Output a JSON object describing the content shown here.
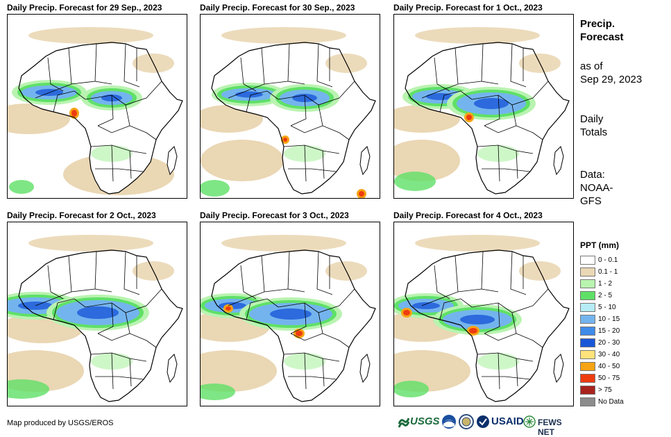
{
  "panels": [
    {
      "title": "Daily Precip. Forecast for 29  Sep., 2023"
    },
    {
      "title": "Daily Precip. Forecast for 30  Sep., 2023"
    },
    {
      "title": "Daily Precip. Forecast for 1 Oct., 2023"
    },
    {
      "title": "Daily Precip. Forecast for 2 Oct., 2023"
    },
    {
      "title": "Daily Precip. Forecast for 3 Oct., 2023"
    },
    {
      "title": "Daily Precip. Forecast for 4 Oct., 2023"
    }
  ],
  "side": {
    "title_line1": "Precip.",
    "title_line2": "Forecast",
    "asof_line1": "as of",
    "asof_line2": "Sep 29, 2023",
    "daily_line1": "Daily",
    "daily_line2": "Totals",
    "data_line1": "Data:",
    "data_line2": "NOAA-",
    "data_line3": "GFS"
  },
  "legend": {
    "title": "PPT (mm)",
    "items": [
      {
        "label": "0 - 0.1",
        "color": "#ffffff"
      },
      {
        "label": "0.1 - 1",
        "color": "#ead7b4"
      },
      {
        "label": "1 - 2",
        "color": "#b9f3b0"
      },
      {
        "label": "2 - 5",
        "color": "#5fe067"
      },
      {
        "label": "5 - 10",
        "color": "#b6ecf5"
      },
      {
        "label": "10 - 15",
        "color": "#74b4ee"
      },
      {
        "label": "15 - 20",
        "color": "#3f8be8"
      },
      {
        "label": "20 - 30",
        "color": "#1a57d8"
      },
      {
        "label": "30 - 40",
        "color": "#fde37a"
      },
      {
        "label": "40 - 50",
        "color": "#f7a414"
      },
      {
        "label": "50 - 75",
        "color": "#ee3c10"
      },
      {
        "label": "> 75",
        "color": "#a8231e"
      },
      {
        "label": "No Data",
        "color": "#8c8c8c"
      }
    ]
  },
  "footer": {
    "credit": "Map produced by USGS/EROS",
    "logo_usgs": "USGS",
    "logo_usaid": "USAID",
    "logo_fews": "FEWS NET"
  }
}
